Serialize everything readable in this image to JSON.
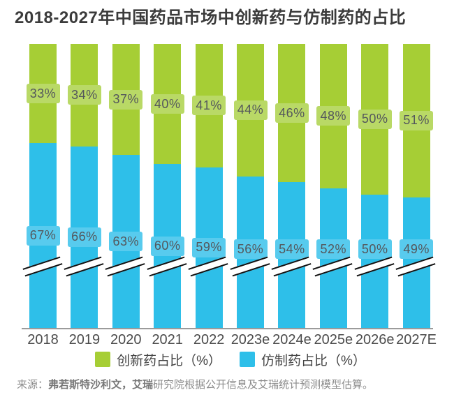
{
  "title": "2018-2027年中国药品市场中创新药与仿制药的占比",
  "chart_data": {
    "type": "bar",
    "stacked": true,
    "unit": "%",
    "categories": [
      "2018",
      "2019",
      "2020",
      "2021",
      "2022",
      "2023e",
      "2024e",
      "2025e",
      "2026e",
      "2027E"
    ],
    "series": [
      {
        "name": "创新药占比（%）",
        "values": [
          33,
          34,
          37,
          40,
          41,
          44,
          46,
          48,
          50,
          51
        ],
        "color": "#a6ce35",
        "label_bg": "#b9d966"
      },
      {
        "name": "仿制药占比（%）",
        "values": [
          67,
          66,
          63,
          60,
          59,
          56,
          54,
          52,
          50,
          49
        ],
        "color": "#2ebfe9",
        "label_bg": "#58cbee"
      }
    ],
    "axis_break": true,
    "legend_position": "bottom",
    "ylim": [
      0,
      100
    ],
    "grid": false
  },
  "colors": {
    "title_text": "#3b3b3b",
    "chip_text": "#54575c",
    "axis_line": "#9b9b9b",
    "year_text": "#4b4b4b",
    "legend_text": "#444444",
    "source_text": "#8c8c8c",
    "break_line": "#111111"
  },
  "source": {
    "prefix": "来源：",
    "bold": "弗若斯特沙利文，艾瑞",
    "rest": "研究院根据公开信息及艾瑞统计预测模型估算。"
  }
}
